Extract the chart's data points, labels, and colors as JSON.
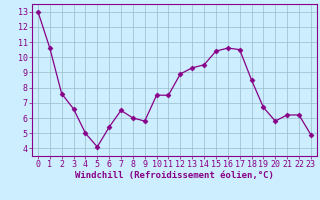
{
  "x": [
    0,
    1,
    2,
    3,
    4,
    5,
    6,
    7,
    8,
    9,
    10,
    11,
    12,
    13,
    14,
    15,
    16,
    17,
    18,
    19,
    20,
    21,
    22,
    23
  ],
  "y": [
    13.0,
    10.6,
    7.6,
    6.6,
    5.0,
    4.1,
    5.4,
    6.5,
    6.0,
    5.8,
    7.5,
    7.5,
    8.9,
    9.3,
    9.5,
    10.4,
    10.6,
    10.5,
    8.5,
    6.7,
    5.8,
    6.2,
    6.2,
    4.9
  ],
  "line_color": "#880088",
  "marker": "D",
  "marker_size": 2.5,
  "bg_color": "#cceeff",
  "grid_color": "#99bbcc",
  "xlabel": "Windchill (Refroidissement éolien,°C)",
  "xlabel_color": "#880088",
  "tick_color": "#880088",
  "ylim": [
    3.5,
    13.5
  ],
  "yticks": [
    4,
    5,
    6,
    7,
    8,
    9,
    10,
    11,
    12,
    13
  ],
  "xticks": [
    0,
    1,
    2,
    3,
    4,
    5,
    6,
    7,
    8,
    9,
    10,
    11,
    12,
    13,
    14,
    15,
    16,
    17,
    18,
    19,
    20,
    21,
    22,
    23
  ],
  "label_fontsize": 6.5,
  "tick_fontsize": 6.0
}
